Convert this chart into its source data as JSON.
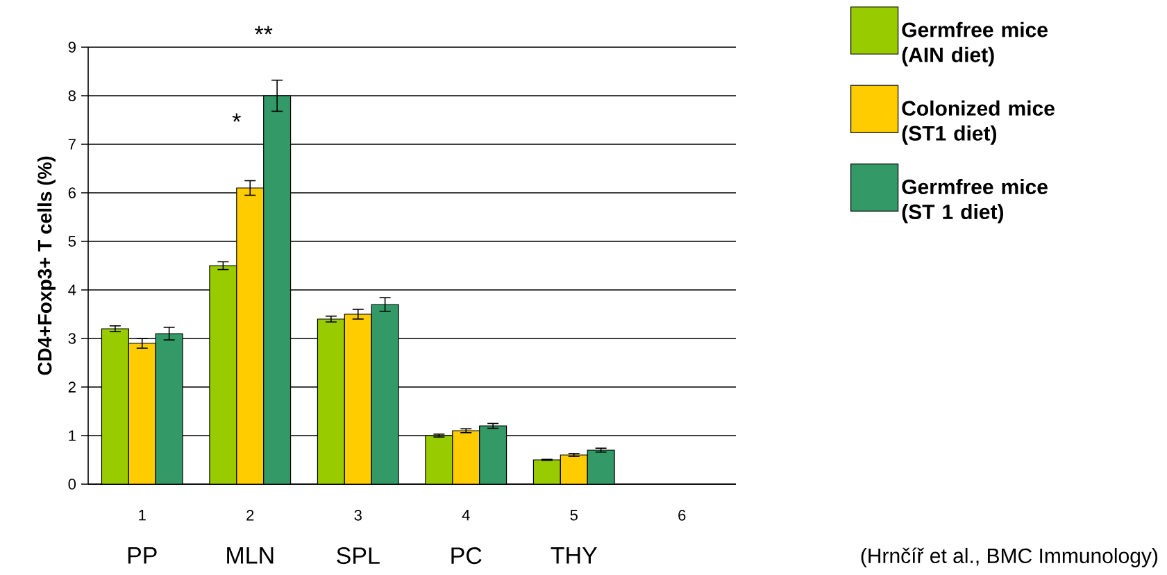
{
  "chart_data": {
    "type": "bar",
    "ylabel": "CD4+Foxp3+ T cells (%)",
    "categories": [
      "1",
      "2",
      "3",
      "4",
      "5",
      "6"
    ],
    "series": [
      {
        "name": "Germfree mice (AIN diet)",
        "color": "#99cc00",
        "values": [
          3.2,
          4.5,
          3.4,
          1.0,
          0.5,
          null
        ],
        "errors": [
          0.06,
          0.08,
          0.06,
          0.03,
          0.01,
          null
        ]
      },
      {
        "name": "Colonized mice (ST1 diet)",
        "color": "#ffcc00",
        "values": [
          2.9,
          6.1,
          3.5,
          1.1,
          0.6,
          null
        ],
        "errors": [
          0.1,
          0.15,
          0.1,
          0.04,
          0.03,
          null
        ]
      },
      {
        "name": "Germfree mice (ST 1 diet)",
        "color": "#339966",
        "values": [
          3.1,
          8.0,
          3.7,
          1.2,
          0.7,
          null
        ],
        "errors": [
          0.13,
          0.32,
          0.14,
          0.05,
          0.04,
          null
        ]
      }
    ],
    "ylim": [
      0,
      9
    ],
    "yticks": [
      0,
      1,
      2,
      3,
      4,
      5,
      6,
      7,
      8,
      9
    ],
    "grid": "y",
    "legend": "top right",
    "annotations": [
      "PP",
      "MLN",
      "SPL",
      "PC",
      "THY",
      "*",
      "**",
      "(Hrnčíř et al., BMC Immunology)"
    ]
  }
}
